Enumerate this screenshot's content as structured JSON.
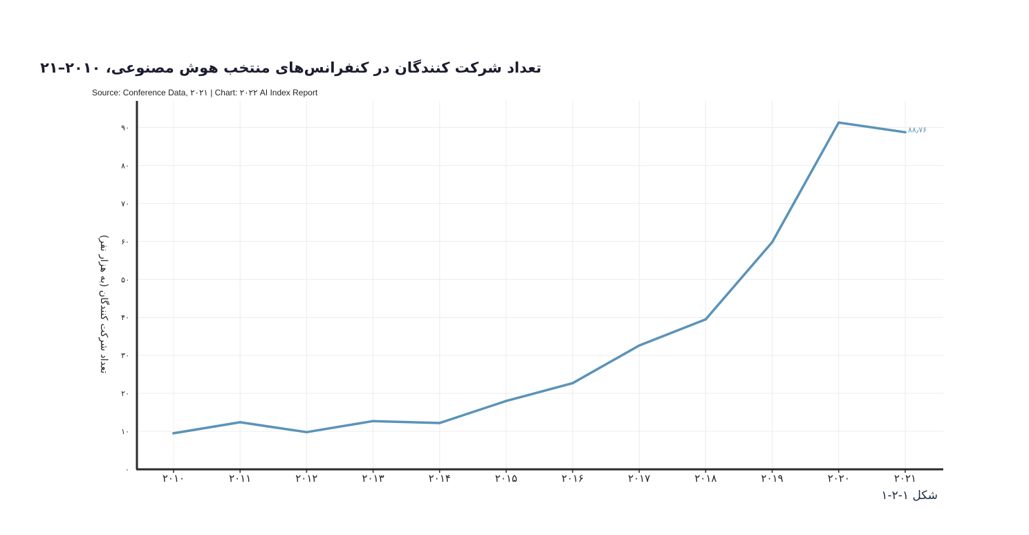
{
  "chart_data": {
    "type": "line",
    "title": "تعداد شرکت کنندگان در کنفرانس‌های منتخب هوش مصنوعی، ۲۰۱۰–۲۱",
    "source": "Source: Conference Data, ۲۰۲۱ | Chart: ۲۰۲۲ AI Index Report",
    "ylabel": "تعداد شرکت کنندگان (به هزار نفر)",
    "xlabel": "",
    "ylim": [
      0,
      97
    ],
    "grid": true,
    "categories": [
      "۲۰۱۰",
      "۲۰۱۱",
      "۲۰۱۲",
      "۲۰۱۳",
      "۲۰۱۴",
      "۲۰۱۵",
      "۲۰۱۶",
      "۲۰۱۷",
      "۲۰۱۸",
      "۲۰۱۹",
      "۲۰۲۰",
      "۲۰۲۱"
    ],
    "y_ticks": [
      0,
      10,
      20,
      30,
      40,
      50,
      60,
      70,
      80,
      90
    ],
    "y_tick_labels": [
      "۰",
      "۱۰",
      "۲۰",
      "۳۰",
      "۴۰",
      "۵۰",
      "۶۰",
      "۷۰",
      "۸۰",
      "۹۰"
    ],
    "series": [
      {
        "values": [
          9.5,
          12.4,
          9.8,
          12.7,
          12.2,
          18.0,
          22.7,
          32.6,
          39.5,
          59.8,
          91.3,
          88.76
        ],
        "color": "#5a93b8"
      }
    ],
    "end_label": "۸۸٫۷۶"
  },
  "caption": "شکل ۱-۲-۱"
}
